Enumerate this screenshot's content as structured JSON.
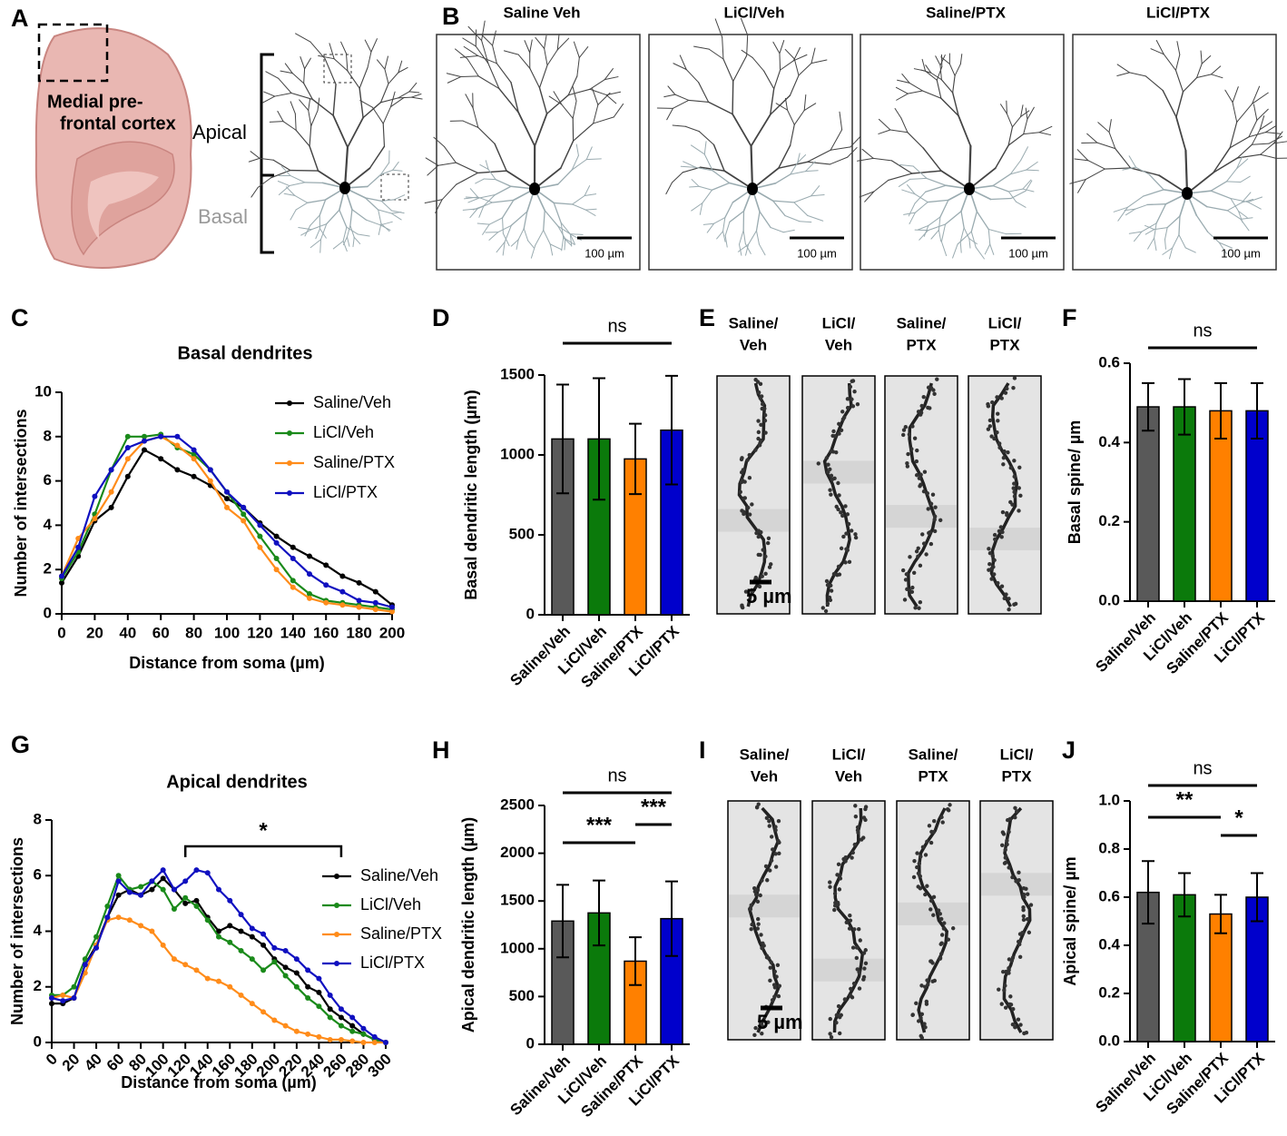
{
  "panel_labels": [
    "A",
    "B",
    "C",
    "D",
    "E",
    "F",
    "G",
    "H",
    "I",
    "J"
  ],
  "panel_a": {
    "region": [
      "Medial pre-",
      "frontal cortex"
    ],
    "apical": "Apical",
    "basal": "Basal"
  },
  "panel_b": {
    "titles": [
      "Saline Veh",
      "LiCl/Veh",
      "Saline/PTX",
      "LiCl/PTX"
    ],
    "scale_bars": [
      "100 µm",
      "100 µm",
      "100 µm",
      "100 µm"
    ]
  },
  "panel_e": {
    "titles": [
      [
        "Saline/",
        "Veh"
      ],
      [
        "LiCl/",
        "Veh"
      ],
      [
        "Saline/",
        "PTX"
      ],
      [
        "LiCl/",
        "PTX"
      ]
    ],
    "scale_bar": "5 µm"
  },
  "panel_i": {
    "titles": [
      [
        "Saline/",
        "Veh"
      ],
      [
        "LiCl/",
        "Veh"
      ],
      [
        "Saline/",
        "PTX"
      ],
      [
        "LiCl/",
        "PTX"
      ]
    ],
    "scale_bar": "5 µm"
  },
  "chart_data": [
    {
      "type": "line",
      "title": "Basal dendrites",
      "x_label": "Distance from soma (µm)",
      "y_label": "Number of intersections",
      "x": [
        0,
        10,
        20,
        30,
        40,
        50,
        60,
        70,
        80,
        90,
        100,
        110,
        120,
        130,
        140,
        150,
        160,
        170,
        180,
        190,
        200
      ],
      "xlim": [
        0,
        200
      ],
      "xticks": [
        0,
        20,
        40,
        60,
        80,
        100,
        120,
        140,
        160,
        180,
        200
      ],
      "ylim": [
        0,
        10
      ],
      "yticks": [
        0,
        2,
        4,
        6,
        8,
        10
      ],
      "legend": "right",
      "series": [
        {
          "name": "Saline/Veh",
          "color": "#000000",
          "values": [
            1.4,
            2.6,
            4.2,
            4.8,
            6.2,
            7.4,
            7.0,
            6.5,
            6.2,
            5.8,
            5.2,
            4.8,
            4.1,
            3.5,
            3.0,
            2.6,
            2.2,
            1.7,
            1.4,
            1.0,
            0.4
          ]
        },
        {
          "name": "LiCl/Veh",
          "color": "#1a8a1a",
          "values": [
            1.6,
            2.8,
            4.5,
            6.5,
            8.0,
            8.0,
            8.1,
            7.5,
            7.2,
            6.5,
            5.5,
            4.5,
            3.5,
            2.5,
            1.5,
            0.9,
            0.6,
            0.5,
            0.4,
            0.3,
            0.2
          ]
        },
        {
          "name": "Saline/PTX",
          "color": "#ff8c1a",
          "values": [
            1.7,
            3.4,
            4.3,
            5.5,
            7.0,
            7.8,
            8.0,
            7.6,
            7.0,
            6.0,
            4.8,
            4.2,
            3.0,
            2.0,
            1.2,
            0.7,
            0.5,
            0.4,
            0.3,
            0.2,
            0.1
          ]
        },
        {
          "name": "LiCl/PTX",
          "color": "#1010c0",
          "values": [
            1.7,
            3.0,
            5.3,
            6.5,
            7.5,
            7.8,
            8.0,
            8.0,
            7.4,
            6.5,
            5.5,
            4.8,
            4.0,
            3.2,
            2.5,
            1.8,
            1.3,
            1.0,
            0.6,
            0.5,
            0.3
          ]
        }
      ]
    },
    {
      "type": "bar",
      "y_label": "Basal dendritic length (µm)",
      "categories": [
        "Saline/Veh",
        "LiCl/Veh",
        "Saline/PTX",
        "LiCl/PTX"
      ],
      "values": [
        1100,
        1100,
        975,
        1155
      ],
      "errors": [
        340,
        380,
        220,
        340
      ],
      "colors": [
        "#595959",
        "#0b7a0b",
        "#ff8000",
        "#0000cc"
      ],
      "ylim": [
        0,
        1500
      ],
      "yticks": [
        0,
        500,
        1000,
        1500
      ],
      "annotations": [
        {
          "text": "ns",
          "from": "Saline/Veh",
          "to": "LiCl/PTX"
        }
      ]
    },
    {
      "type": "bar",
      "y_label": "Basal spine/ µm",
      "categories": [
        "Saline/Veh",
        "LiCl/Veh",
        "Saline/PTX",
        "LiCl/PTX"
      ],
      "values": [
        0.49,
        0.49,
        0.48,
        0.48
      ],
      "errors": [
        0.06,
        0.07,
        0.07,
        0.07
      ],
      "colors": [
        "#595959",
        "#0b7a0b",
        "#ff8000",
        "#0000cc"
      ],
      "ylim": [
        0,
        0.6
      ],
      "yticks": [
        {
          "value": 0,
          "label": "0.0"
        },
        0.2,
        0.4,
        0.6
      ],
      "annotations": [
        {
          "text": "ns",
          "from": "Saline/Veh",
          "to": "LiCl/PTX"
        }
      ]
    },
    {
      "type": "line",
      "title": "Apical dendrites",
      "x_label": "Distance from soma (µm)",
      "y_label": "Number of intersections",
      "x": [
        0,
        10,
        20,
        30,
        40,
        50,
        60,
        70,
        80,
        90,
        100,
        110,
        120,
        130,
        140,
        150,
        160,
        170,
        180,
        190,
        200,
        210,
        220,
        230,
        240,
        250,
        260,
        270,
        280,
        290,
        300
      ],
      "xlim": [
        0,
        300
      ],
      "xticks": [
        0,
        20,
        40,
        60,
        80,
        100,
        120,
        140,
        160,
        180,
        200,
        220,
        240,
        260,
        280,
        300
      ],
      "ylim": [
        0,
        8
      ],
      "yticks": [
        0,
        2,
        4,
        6,
        8
      ],
      "legend": "right",
      "annotations": [
        {
          "text": "*",
          "x": [
            120,
            260
          ]
        }
      ],
      "series": [
        {
          "name": "Saline/Veh",
          "color": "#000000",
          "values": [
            1.4,
            1.4,
            1.6,
            2.8,
            3.5,
            4.5,
            5.3,
            5.5,
            5.3,
            5.5,
            5.9,
            5.5,
            5.0,
            5.1,
            4.5,
            4.0,
            4.2,
            4.0,
            3.8,
            3.5,
            3.0,
            2.7,
            2.5,
            2.0,
            1.8,
            1.2,
            0.9,
            0.6,
            0.3,
            0.1,
            0
          ]
        },
        {
          "name": "LiCl/Veh",
          "color": "#1a8a1a",
          "values": [
            1.7,
            1.7,
            2.0,
            3.0,
            3.8,
            4.9,
            6.0,
            5.5,
            5.6,
            5.8,
            5.5,
            4.8,
            5.2,
            4.9,
            4.4,
            3.8,
            3.6,
            3.3,
            3.0,
            2.6,
            2.9,
            2.4,
            2.0,
            1.6,
            1.3,
            0.9,
            0.6,
            0.4,
            0.3,
            0.1,
            0
          ]
        },
        {
          "name": "Saline/PTX",
          "color": "#ff8c1a",
          "values": [
            1.6,
            1.7,
            1.6,
            2.5,
            3.5,
            4.4,
            4.5,
            4.4,
            4.2,
            4.0,
            3.5,
            3.0,
            2.8,
            2.6,
            2.3,
            2.2,
            2.0,
            1.7,
            1.4,
            1.1,
            0.8,
            0.6,
            0.4,
            0.3,
            0.2,
            0.1,
            0.1,
            0.05,
            0,
            0,
            0
          ]
        },
        {
          "name": "LiCl/PTX",
          "color": "#1010c0",
          "values": [
            1.6,
            1.5,
            1.6,
            2.8,
            3.4,
            4.5,
            5.8,
            5.4,
            5.3,
            5.8,
            6.2,
            5.5,
            5.8,
            6.2,
            6.1,
            5.5,
            5.1,
            4.6,
            4.1,
            3.9,
            3.4,
            3.3,
            3.0,
            2.6,
            2.3,
            1.7,
            1.2,
            0.9,
            0.5,
            0.2,
            0
          ]
        }
      ]
    },
    {
      "type": "bar",
      "y_label": "Apical dendritic length (µm)",
      "categories": [
        "Saline/Veh",
        "LiCl/Veh",
        "Saline/PTX",
        "LiCl/PTX"
      ],
      "values": [
        1290,
        1375,
        870,
        1315
      ],
      "errors": [
        380,
        340,
        250,
        390
      ],
      "colors": [
        "#595959",
        "#0b7a0b",
        "#ff8000",
        "#0000cc"
      ],
      "ylim": [
        0,
        2500
      ],
      "yticks": [
        0,
        500,
        1000,
        1500,
        2000,
        2500
      ],
      "annotations": [
        {
          "text": "ns",
          "from": "Saline/Veh",
          "to": "LiCl/PTX"
        },
        {
          "text": "***",
          "from": "Saline/Veh",
          "to": "Saline/PTX"
        },
        {
          "text": "***",
          "from": "Saline/PTX",
          "to": "LiCl/PTX"
        }
      ]
    },
    {
      "type": "bar",
      "y_label": "Apical spine/ µm",
      "categories": [
        "Saline/Veh",
        "LiCl/Veh",
        "Saline/PTX",
        "LiCl/PTX"
      ],
      "values": [
        0.62,
        0.61,
        0.53,
        0.6
      ],
      "errors": [
        0.13,
        0.09,
        0.08,
        0.1
      ],
      "colors": [
        "#595959",
        "#0b7a0b",
        "#ff8000",
        "#0000cc"
      ],
      "ylim": [
        0,
        1
      ],
      "yticks": [
        {
          "value": 0,
          "label": "0.0"
        },
        0.2,
        0.4,
        0.6,
        0.8,
        {
          "value": 1,
          "label": "1.0"
        }
      ],
      "annotations": [
        {
          "text": "ns",
          "from": "Saline/Veh",
          "to": "LiCl/PTX"
        },
        {
          "text": "**",
          "from": "Saline/Veh",
          "to": "Saline/PTX"
        },
        {
          "text": "*",
          "from": "Saline/PTX",
          "to": "LiCl/PTX"
        }
      ]
    }
  ]
}
